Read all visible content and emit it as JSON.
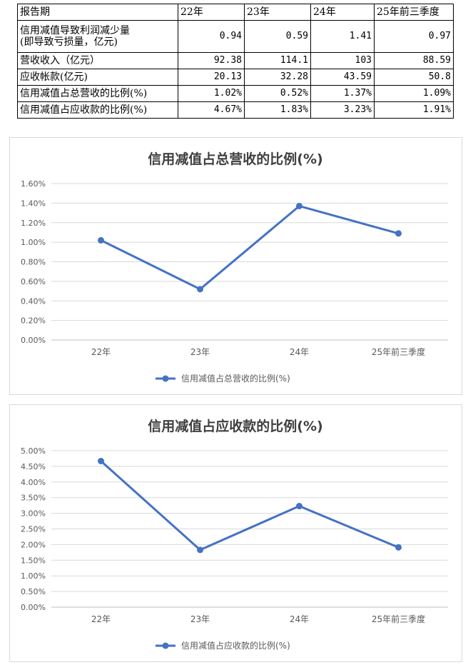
{
  "table": {
    "header": [
      "报告期",
      "22年",
      "23年",
      "24年",
      "25年前三季度"
    ],
    "rows": [
      {
        "label": "信用减值导致利润减少量\n(即导致亏损量，亿元)",
        "values": [
          "0.94",
          "0.59",
          "1.41",
          "0.97"
        ]
      },
      {
        "label": "营收收入（亿元）",
        "values": [
          "92.38",
          "114.1",
          "103",
          "88.59"
        ]
      },
      {
        "label": "应收帐款(亿元)",
        "values": [
          "20.13",
          "32.28",
          "43.59",
          "50.8"
        ]
      },
      {
        "label": "信用减值占总营收的比例(%)",
        "values": [
          "1.02%",
          "0.52%",
          "1.37%",
          "1.09%"
        ]
      },
      {
        "label": "信用减值占应收款的比例(%)",
        "values": [
          "4.67%",
          "1.83%",
          "3.23%",
          "1.91%"
        ]
      }
    ]
  },
  "chart_data": [
    {
      "type": "line",
      "title": "信用减值占总营收的比例(%)",
      "categories": [
        "22年",
        "23年",
        "24年",
        "25年前三季度"
      ],
      "series": [
        {
          "name": "信用减值占总营收的比例(%)",
          "values": [
            1.02,
            0.52,
            1.37,
            1.09
          ],
          "color": "#4472c4"
        }
      ],
      "ylim": [
        0,
        1.6
      ],
      "yticks": [
        "0.00%",
        "0.20%",
        "0.40%",
        "0.60%",
        "0.80%",
        "1.00%",
        "1.20%",
        "1.40%",
        "1.60%"
      ],
      "grid": true,
      "legend": "bottom"
    },
    {
      "type": "line",
      "title": "信用减值占应收款的比例(%)",
      "categories": [
        "22年",
        "23年",
        "24年",
        "25年前三季度"
      ],
      "series": [
        {
          "name": "信用减值占应收款的比例(%)",
          "values": [
            4.67,
            1.83,
            3.23,
            1.91
          ],
          "color": "#4472c4"
        }
      ],
      "ylim": [
        0,
        5
      ],
      "yticks": [
        "0.00%",
        "0.50%",
        "1.00%",
        "1.50%",
        "2.00%",
        "2.50%",
        "3.00%",
        "3.50%",
        "4.00%",
        "4.50%",
        "5.00%"
      ],
      "grid": true,
      "legend": "bottom"
    }
  ]
}
